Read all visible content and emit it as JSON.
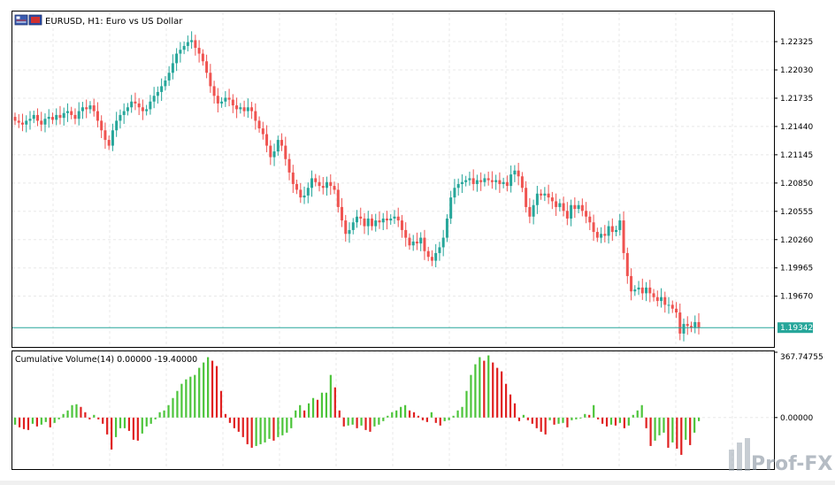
{
  "header": {
    "symbol_title": "EURUSD, H1:  Euro vs US Dollar",
    "icon": "symbol-flags-icon"
  },
  "indicator": {
    "title": "Cumulative Volume(14) 0.00000 -19.40000"
  },
  "watermark": {
    "text": "Prof-FX"
  },
  "colors": {
    "bull": "#26a69a",
    "bear": "#ef5350",
    "price_line": "#26a69a",
    "hist_up": "#4cc43a",
    "hist_down": "#e02020",
    "grid": "#e8e8e8"
  },
  "chart_data": [
    {
      "type": "candlestick",
      "title": "EURUSD, H1:  Euro vs US Dollar",
      "y_ticks": [
        "1.22325",
        "1.22030",
        "1.21735",
        "1.21440",
        "1.21145",
        "1.20850",
        "1.20555",
        "1.20260",
        "1.19965",
        "1.19670"
      ],
      "ylim": [
        1.1915,
        1.2263
      ],
      "current_price": 1.19342,
      "current_price_label": "1.19342",
      "close": [
        1.215,
        1.2148,
        1.2146,
        1.215,
        1.2152,
        1.2156,
        1.215,
        1.2146,
        1.2152,
        1.2154,
        1.2151,
        1.2156,
        1.2153,
        1.2158,
        1.216,
        1.2156,
        1.2152,
        1.216,
        1.2164,
        1.2162,
        1.2166,
        1.216,
        1.215,
        1.214,
        1.213,
        1.2124,
        1.214,
        1.215,
        1.2156,
        1.216,
        1.2164,
        1.217,
        1.2168,
        1.2164,
        1.216,
        1.2162,
        1.217,
        1.2176,
        1.218,
        1.2186,
        1.2192,
        1.22,
        1.221,
        1.222,
        1.2224,
        1.2228,
        1.2232,
        1.2234,
        1.2226,
        1.222,
        1.2212,
        1.22,
        1.2186,
        1.2176,
        1.2168,
        1.217,
        1.2174,
        1.2172,
        1.2166,
        1.2162,
        1.2164,
        1.216,
        1.2164,
        1.216,
        1.215,
        1.2142,
        1.2136,
        1.2124,
        1.2112,
        1.2118,
        1.213,
        1.2124,
        1.211,
        1.2096,
        1.2084,
        1.2078,
        1.207,
        1.2072,
        1.208,
        1.209,
        1.2086,
        1.2082,
        1.208,
        1.2086,
        1.2082,
        1.2078,
        1.206,
        1.2046,
        1.2032,
        1.2036,
        1.2044,
        1.205,
        1.2048,
        1.204,
        1.2048,
        1.204,
        1.2046,
        1.2044,
        1.2048,
        1.2046,
        1.2048,
        1.205,
        1.2046,
        1.2036,
        1.2028,
        1.202,
        1.2024,
        1.2022,
        1.2028,
        1.2014,
        1.2008,
        1.2004,
        1.2012,
        1.2018,
        1.2028,
        1.2048,
        1.207,
        1.208,
        1.2084,
        1.2086,
        1.2088,
        1.209,
        1.2084,
        1.2088,
        1.2086,
        1.209,
        1.2088,
        1.2086,
        1.2088,
        1.2084,
        1.2086,
        1.2082,
        1.2094,
        1.2098,
        1.2092,
        1.208,
        1.206,
        1.205,
        1.2062,
        1.2074,
        1.2072,
        1.2074,
        1.207,
        1.2066,
        1.206,
        1.2064,
        1.2056,
        1.2048,
        1.2062,
        1.2058,
        1.2062,
        1.2056,
        1.205,
        1.2044,
        1.2034,
        1.2028,
        1.2032,
        1.203,
        1.204,
        1.2034,
        1.2036,
        1.2046,
        1.2012,
        1.1988,
        1.1972,
        1.1974,
        1.1976,
        1.197,
        1.1976,
        1.197,
        1.1966,
        1.1962,
        1.1966,
        1.1958,
        1.1958,
        1.1954,
        1.195,
        1.1928,
        1.1938,
        1.1936,
        1.1934,
        1.194,
        1.1934
      ]
    },
    {
      "type": "bar",
      "title": "Cumulative Volume(14) 0.00000 -19.40000",
      "y_ticks": [
        "367.74755",
        "0.00000"
      ],
      "ylim": [
        -290,
        367.74755
      ],
      "values": [
        -40,
        -55,
        -65,
        -70,
        -35,
        -50,
        -40,
        -25,
        -55,
        -30,
        -10,
        20,
        40,
        70,
        75,
        60,
        30,
        -10,
        15,
        -10,
        -35,
        -95,
        -180,
        -110,
        -60,
        -60,
        -75,
        -125,
        -130,
        -90,
        -50,
        -35,
        -10,
        30,
        40,
        70,
        110,
        150,
        190,
        215,
        230,
        240,
        280,
        310,
        340,
        320,
        290,
        150,
        20,
        -30,
        -60,
        -80,
        -110,
        -150,
        -170,
        -160,
        -150,
        -140,
        -120,
        -130,
        -110,
        -100,
        -85,
        -60,
        40,
        70,
        40,
        80,
        110,
        100,
        140,
        140,
        240,
        170,
        40,
        -50,
        -45,
        -40,
        -60,
        -45,
        -70,
        -80,
        -50,
        -40,
        -20,
        10,
        30,
        40,
        60,
        70,
        40,
        30,
        10,
        -15,
        -25,
        30,
        -30,
        -45,
        -20,
        -15,
        10,
        40,
        60,
        150,
        240,
        300,
        340,
        320,
        350,
        310,
        280,
        260,
        190,
        130,
        80,
        -20,
        15,
        -15,
        -35,
        -60,
        -80,
        -95,
        -15,
        -40,
        -35,
        -30,
        -55,
        -15,
        -10,
        -5,
        20,
        15,
        70,
        -10,
        -35,
        -50,
        -40,
        -45,
        -30,
        -60,
        -45,
        15,
        40,
        70,
        -60,
        -160,
        -130,
        -100,
        -85,
        -170,
        -140,
        -175,
        -210,
        -125,
        -155,
        -85,
        -20
      ]
    }
  ]
}
